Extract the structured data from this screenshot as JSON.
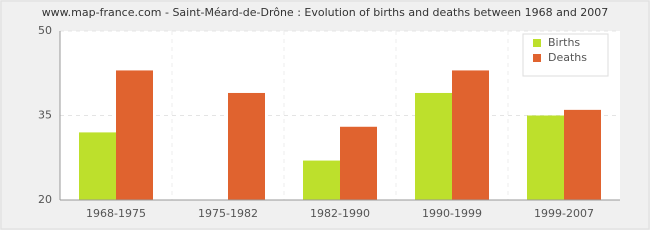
{
  "chart_data": {
    "type": "bar",
    "title": "www.map-france.com - Saint-Méard-de-Drône : Evolution of births and deaths between 1968 and 2007",
    "categories": [
      "1968-1975",
      "1975-1982",
      "1982-1990",
      "1990-1999",
      "1999-2007"
    ],
    "series": [
      {
        "name": "Births",
        "color": "#bde02c",
        "values": [
          32,
          20,
          27,
          39,
          35
        ]
      },
      {
        "name": "Deaths",
        "color": "#e0632f",
        "values": [
          43,
          39,
          33,
          43,
          36
        ]
      }
    ],
    "ylim": [
      20,
      50
    ],
    "yticks": [
      20,
      35,
      50
    ],
    "grid": true,
    "legend": "top-right"
  }
}
